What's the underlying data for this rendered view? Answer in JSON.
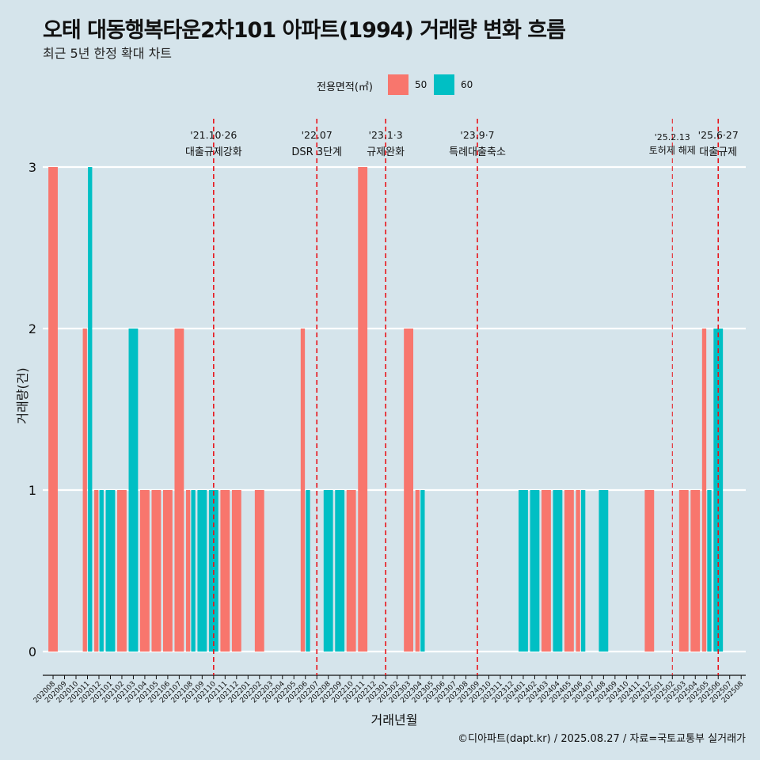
{
  "title": "오태 대동행복타운2차101 아파트(1994) 거래량 변화 흐름",
  "subtitle": "최근 5년 한정 확대 차트",
  "caption": "©디아파트(dapt.kr) / 2025.08.27 / 자료=국토교통부 실거래가",
  "legend": {
    "title": "전용면적(㎡)",
    "items": [
      {
        "label": "50",
        "color": "#f8766d"
      },
      {
        "label": "60",
        "color": "#00bfc4"
      }
    ]
  },
  "chart_data": {
    "type": "bar",
    "xlabel": "거래년월",
    "ylabel": "거래량(건)",
    "ylim": [
      0,
      3
    ],
    "yticks": [
      0,
      1,
      2,
      3
    ],
    "grid": "horizontal",
    "legend_position": "top",
    "categories": [
      "202008",
      "202009",
      "202010",
      "202011",
      "202012",
      "202101",
      "202102",
      "202103",
      "202104",
      "202105",
      "202106",
      "202107",
      "202108",
      "202109",
      "202110",
      "202111",
      "202112",
      "202201",
      "202202",
      "202203",
      "202204",
      "202205",
      "202206",
      "202207",
      "202208",
      "202209",
      "202210",
      "202211",
      "202212",
      "202301",
      "202302",
      "202303",
      "202304",
      "202305",
      "202306",
      "202307",
      "202308",
      "202309",
      "202310",
      "202311",
      "202312",
      "202401",
      "202402",
      "202403",
      "202404",
      "202405",
      "202406",
      "202407",
      "202408",
      "202409",
      "202410",
      "202411",
      "202412",
      "202501",
      "202502",
      "202503",
      "202504",
      "202505",
      "202506",
      "202507",
      "202508"
    ],
    "series": [
      {
        "name": "50",
        "color": "#f8766d",
        "values": [
          3,
          0,
          0,
          2,
          1,
          0,
          1,
          0,
          1,
          1,
          1,
          2,
          1,
          0,
          0,
          1,
          1,
          0,
          1,
          0,
          0,
          0,
          2,
          0,
          0,
          0,
          1,
          3,
          0,
          0,
          0,
          2,
          1,
          0,
          0,
          0,
          0,
          0,
          0,
          0,
          0,
          0,
          0,
          1,
          0,
          1,
          1,
          0,
          0,
          0,
          0,
          0,
          1,
          0,
          0,
          1,
          1,
          2,
          0,
          0,
          0
        ]
      },
      {
        "name": "60",
        "color": "#00bfc4",
        "values": [
          0,
          0,
          0,
          3,
          1,
          1,
          0,
          2,
          0,
          0,
          0,
          0,
          1,
          1,
          1,
          0,
          0,
          0,
          0,
          0,
          0,
          0,
          1,
          0,
          1,
          1,
          0,
          0,
          0,
          0,
          0,
          0,
          1,
          0,
          0,
          0,
          0,
          0,
          0,
          0,
          0,
          1,
          1,
          0,
          1,
          0,
          1,
          0,
          1,
          0,
          0,
          0,
          0,
          0,
          0,
          0,
          0,
          1,
          2,
          0,
          0
        ]
      }
    ],
    "annotations": [
      {
        "date": "'21.10·26",
        "label": "대출규제강화",
        "x": "202110"
      },
      {
        "date": "'22.07",
        "label": "DSR 3단계",
        "x": "202207"
      },
      {
        "date": "'23.1·3",
        "label": "규제완화",
        "x": "202301"
      },
      {
        "date": "'23.9·7",
        "label": "특례대출축소",
        "x": "202309"
      },
      {
        "date": "'25.2.13",
        "label": "토허제 해제",
        "x": "202502"
      },
      {
        "date": "'25.6·27",
        "label": "대출규제",
        "x": "202506"
      }
    ]
  }
}
